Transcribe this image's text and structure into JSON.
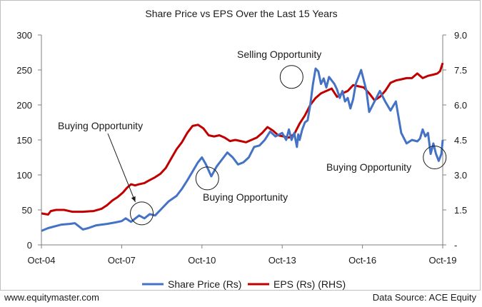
{
  "footer": {
    "website": "www.equitymaster.com",
    "source": "Data Source: ACE Equity"
  },
  "colors": {
    "share_price": "#4472c4",
    "eps": "#c00000",
    "axis": "#7f7f7f"
  },
  "chart_data": {
    "type": "line",
    "title": "Share Price vs EPS Over the Last 15 Years",
    "x_ticks": [
      "Oct-04",
      "Oct-07",
      "Oct-10",
      "Oct-13",
      "Oct-16",
      "Oct-19"
    ],
    "x_range": [
      2004.75,
      2019.75
    ],
    "left_axis": {
      "min": 0,
      "max": 300,
      "ticks": [
        "0",
        "50",
        "100",
        "150",
        "200",
        "250",
        "300"
      ]
    },
    "right_axis": {
      "min": 0,
      "max": 9,
      "ticks": [
        "-",
        "1.5",
        "3.0",
        "4.5",
        "6.0",
        "7.5",
        "9.0"
      ]
    },
    "series": [
      {
        "name": "Share Price (Rs)",
        "axis": "left",
        "x": [
          2004.75,
          2005.0,
          2005.2,
          2005.5,
          2005.8,
          2006.0,
          2006.3,
          2006.5,
          2006.8,
          2007.0,
          2007.2,
          2007.5,
          2007.75,
          2007.9,
          2008.1,
          2008.2,
          2008.4,
          2008.6,
          2008.8,
          2009.0,
          2009.2,
          2009.5,
          2009.8,
          2010.0,
          2010.2,
          2010.4,
          2010.6,
          2010.75,
          2010.9,
          2011.1,
          2011.3,
          2011.5,
          2011.7,
          2011.9,
          2012.1,
          2012.3,
          2012.5,
          2012.7,
          2012.9,
          2013.1,
          2013.3,
          2013.5,
          2013.75,
          2013.9,
          2014.0,
          2014.1,
          2014.2,
          2014.3,
          2014.35,
          2014.4,
          2014.5,
          2014.6,
          2014.7,
          2014.8,
          2014.9,
          2015.0,
          2015.1,
          2015.2,
          2015.3,
          2015.4,
          2015.5,
          2015.6,
          2015.7,
          2015.8,
          2015.9,
          2016.0,
          2016.1,
          2016.2,
          2016.3,
          2016.4,
          2016.5,
          2016.6,
          2016.7,
          2016.8,
          2016.9,
          2017.0,
          2017.2,
          2017.4,
          2017.6,
          2017.8,
          2018.0,
          2018.2,
          2018.4,
          2018.6,
          2018.8,
          2018.9,
          2019.0,
          2019.1,
          2019.2,
          2019.3,
          2019.4,
          2019.5,
          2019.6,
          2019.7,
          2019.75
        ],
        "values": [
          20,
          24,
          26,
          29,
          30,
          31,
          22,
          24,
          28,
          29,
          30,
          32,
          34,
          38,
          33,
          36,
          42,
          38,
          44,
          42,
          50,
          62,
          70,
          80,
          92,
          105,
          118,
          125,
          115,
          98,
          112,
          122,
          132,
          125,
          115,
          118,
          125,
          140,
          142,
          150,
          162,
          155,
          160,
          150,
          165,
          150,
          160,
          140,
          158,
          150,
          165,
          175,
          178,
          200,
          230,
          252,
          248,
          230,
          238,
          225,
          240,
          235,
          230,
          222,
          210,
          220,
          205,
          210,
          195,
          208,
          230,
          240,
          250,
          235,
          220,
          190,
          205,
          220,
          205,
          192,
          205,
          160,
          145,
          150,
          148,
          152,
          165,
          155,
          160,
          130,
          145,
          130,
          120,
          130,
          150
        ]
      },
      {
        "name": "EPS (Rs) (RHS)",
        "axis": "right",
        "x": [
          2004.75,
          2005.0,
          2005.1,
          2005.3,
          2005.6,
          2005.9,
          2006.3,
          2006.7,
          2007.0,
          2007.2,
          2007.4,
          2007.6,
          2007.8,
          2007.95,
          2008.1,
          2008.25,
          2008.4,
          2008.6,
          2008.75,
          2009.0,
          2009.2,
          2009.4,
          2009.6,
          2009.8,
          2010.0,
          2010.2,
          2010.4,
          2010.6,
          2010.8,
          2011.0,
          2011.2,
          2011.4,
          2011.6,
          2011.8,
          2012.0,
          2012.2,
          2012.4,
          2012.6,
          2012.8,
          2013.0,
          2013.2,
          2013.4,
          2013.6,
          2013.8,
          2014.0,
          2014.2,
          2014.4,
          2014.6,
          2014.8,
          2015.0,
          2015.2,
          2015.4,
          2015.6,
          2015.8,
          2016.0,
          2016.2,
          2016.4,
          2016.6,
          2016.8,
          2017.0,
          2017.2,
          2017.4,
          2017.6,
          2017.8,
          2018.0,
          2018.2,
          2018.4,
          2018.6,
          2018.8,
          2019.0,
          2019.2,
          2019.4,
          2019.55,
          2019.65,
          2019.75
        ],
        "values": [
          1.35,
          1.3,
          1.45,
          1.5,
          1.5,
          1.42,
          1.42,
          1.45,
          1.55,
          1.7,
          1.9,
          2.05,
          2.25,
          2.45,
          2.6,
          2.55,
          2.6,
          2.65,
          2.75,
          2.9,
          3.05,
          3.3,
          3.7,
          4.1,
          4.4,
          4.8,
          5.1,
          5.15,
          5.0,
          4.7,
          4.65,
          4.7,
          4.6,
          4.45,
          4.5,
          4.45,
          4.4,
          4.5,
          4.6,
          4.8,
          5.05,
          4.9,
          4.7,
          4.65,
          4.6,
          4.75,
          5.2,
          5.55,
          6.0,
          6.3,
          6.5,
          6.6,
          6.7,
          6.35,
          6.5,
          6.6,
          6.85,
          6.8,
          6.75,
          6.5,
          6.2,
          6.35,
          6.6,
          6.95,
          7.05,
          7.1,
          7.15,
          7.15,
          7.35,
          7.15,
          7.25,
          7.3,
          7.35,
          7.45,
          7.8
        ]
      }
    ],
    "annotations": [
      {
        "text": "Buying Opportunity",
        "x": 2008.5,
        "left_value": 45
      },
      {
        "text": "Buying Opportunity",
        "x": 2010.95,
        "left_value": 95
      },
      {
        "text": "Selling Opportunity",
        "x": 2014.1,
        "left_value": 240
      },
      {
        "text": "Buying Opportunity",
        "x": 2019.45,
        "left_value": 125
      }
    ],
    "legend": {
      "position": "bottom",
      "entries": [
        "Share Price (Rs)",
        "EPS (Rs) (RHS)"
      ]
    }
  }
}
